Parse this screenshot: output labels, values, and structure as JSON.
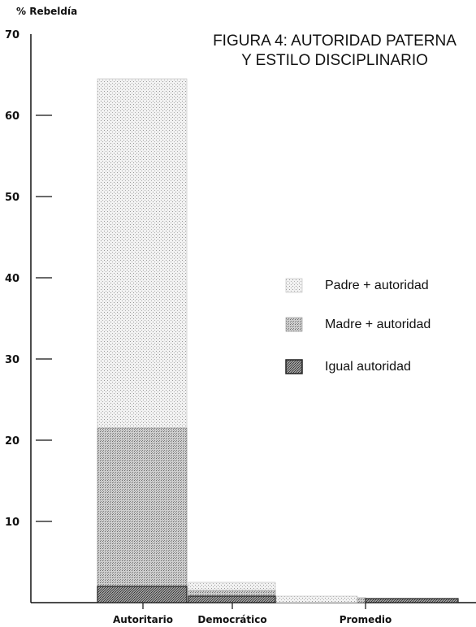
{
  "chart_data": {
    "type": "bar",
    "stacked": false,
    "title_lines": [
      "FIGURA 4:  AUTORIDAD PATERNA",
      "Y ESTILO DISCIPLINARIO"
    ],
    "ylabel": "% Rebeldía",
    "ylim": [
      0,
      70
    ],
    "yticks": [
      10,
      20,
      30,
      40,
      50,
      60,
      70
    ],
    "grid": false,
    "legend_position": "center-right",
    "categories": [
      "Autoritario",
      "Democrático",
      "Promedio"
    ],
    "series": [
      {
        "name": "Padre + autoridad",
        "values": [
          64.5,
          2.5,
          0.8
        ],
        "color": "#e8e8e8",
        "pattern": "light-dots"
      },
      {
        "name": "Madre + autoridad",
        "values": [
          21.5,
          1.5,
          0.6
        ],
        "color": "#bdbdbd",
        "pattern": "medium-dots"
      },
      {
        "name": "Igual autoridad",
        "values": [
          2.0,
          0.8,
          0.5
        ],
        "color": "#7a7a7a",
        "pattern": "dark-dots"
      }
    ]
  }
}
